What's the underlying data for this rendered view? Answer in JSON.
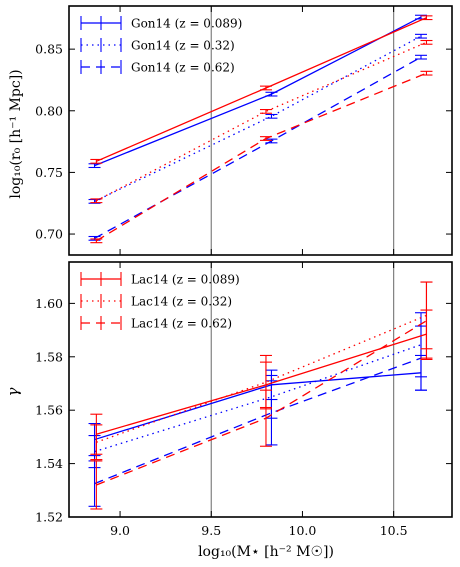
{
  "chart_data": [
    {
      "type": "line",
      "panel": "top",
      "ylabel": "log₁₀(r₀ [h⁻¹ Mpc])",
      "xlim": [
        8.72,
        10.82
      ],
      "ylim": [
        0.683,
        0.885
      ],
      "yticks": [
        0.7,
        0.75,
        0.8,
        0.85
      ],
      "ytick_labels": [
        "0.70",
        "0.75",
        "0.80",
        "0.85"
      ],
      "grid": false,
      "vlines": [
        9.5,
        10.5
      ],
      "legend": {
        "placement": "top-left"
      },
      "series": [
        {
          "name": "Gon14 (z = 0.089)",
          "model": "Gon14",
          "color": "#0000ff",
          "dash": "solid",
          "x": [
            8.86,
            9.83,
            10.65
          ],
          "y": [
            0.7555,
            0.8135,
            0.876
          ],
          "err": [
            0.0015,
            0.0015,
            0.0015
          ]
        },
        {
          "name": "Gon14 (z = 0.32)",
          "model": "Gon14",
          "color": "#0000ff",
          "dash": "dotted",
          "x": [
            8.86,
            9.83,
            10.65
          ],
          "y": [
            0.7265,
            0.7955,
            0.8605
          ],
          "err": [
            0.0015,
            0.0015,
            0.0015
          ]
        },
        {
          "name": "Gon14 (z = 0.62)",
          "model": "Gon14",
          "color": "#0000ff",
          "dash": "dashed",
          "x": [
            8.86,
            9.83,
            10.65
          ],
          "y": [
            0.6965,
            0.7755,
            0.8435
          ],
          "err": [
            0.0015,
            0.0015,
            0.0015
          ]
        },
        {
          "name": "Gon14 (z = 0.089)",
          "model": "Gon14",
          "color": "#ff0000",
          "dash": "solid",
          "x": [
            8.87,
            9.8,
            10.68
          ],
          "y": [
            0.759,
            0.8185,
            0.8755
          ],
          "err": [
            0.0015,
            0.0015,
            0.0015
          ]
        },
        {
          "name": "Gon14 (z = 0.32)",
          "model": "Gon14",
          "color": "#ff0000",
          "dash": "dotted",
          "x": [
            8.87,
            9.8,
            10.68
          ],
          "y": [
            0.727,
            0.7995,
            0.8555
          ],
          "err": [
            0.0015,
            0.0015,
            0.0015
          ]
        },
        {
          "name": "Gon14 (z = 0.62)",
          "model": "Gon14",
          "color": "#ff0000",
          "dash": "dashed",
          "x": [
            8.87,
            9.8,
            10.68
          ],
          "y": [
            0.6945,
            0.7775,
            0.8305
          ],
          "err": [
            0.0015,
            0.0015,
            0.0015
          ]
        }
      ],
      "legend_entries": [
        {
          "label": "Gon14 (z = 0.089)",
          "color": "#0000ff",
          "dash": "solid"
        },
        {
          "label": "Gon14 (z = 0.32)",
          "color": "#0000ff",
          "dash": "dotted"
        },
        {
          "label": "Gon14 (z = 0.62)",
          "color": "#0000ff",
          "dash": "dashed"
        }
      ]
    },
    {
      "type": "line",
      "panel": "bottom",
      "ylabel": "γ",
      "xlabel": "log₁₀(M⋆ [h⁻² M☉])",
      "xlim": [
        8.72,
        10.82
      ],
      "ylim": [
        1.52,
        1.6155
      ],
      "yticks": [
        1.52,
        1.54,
        1.56,
        1.58,
        1.6
      ],
      "ytick_labels": [
        "1.52",
        "1.54",
        "1.56",
        "1.58",
        "1.60"
      ],
      "xticks": [
        9.0,
        9.5,
        10.0,
        10.5
      ],
      "xtick_labels": [
        "9.0",
        "9.5",
        "10.0",
        "10.5"
      ],
      "grid": false,
      "vlines": [
        9.5,
        10.5
      ],
      "legend": {
        "placement": "top-left"
      },
      "series": [
        {
          "name": "Lac14 (z = 0.089)",
          "model": "Lac14",
          "color": "#0000ff",
          "dash": "solid",
          "x": [
            8.86,
            9.83,
            10.65
          ],
          "y": [
            1.549,
            1.5695,
            1.574
          ],
          "err": [
            0.006,
            0.0055,
            0.0065
          ]
        },
        {
          "name": "Lac14 (z = 0.32)",
          "model": "Lac14",
          "color": "#0000ff",
          "dash": "dotted",
          "x": [
            8.86,
            9.83,
            10.65
          ],
          "y": [
            1.5445,
            1.565,
            1.5845
          ],
          "err": [
            0.006,
            0.008,
            0.012
          ]
        },
        {
          "name": "Lac14 (z = 0.62)",
          "model": "Lac14",
          "color": "#0000ff",
          "dash": "dashed",
          "x": [
            8.86,
            9.83,
            10.65
          ],
          "y": [
            1.5325,
            1.559,
            1.5795
          ],
          "err": [
            0.0085,
            0.012,
            0.012
          ]
        },
        {
          "name": "Lac14 (z = 0.089)",
          "model": "Lac14",
          "color": "#ff0000",
          "dash": "solid",
          "x": [
            8.87,
            9.8,
            10.68
          ],
          "y": [
            1.551,
            1.5695,
            1.5885
          ],
          "err": [
            0.0075,
            0.0085,
            0.009
          ]
        },
        {
          "name": "Lac14 (z = 0.32)",
          "model": "Lac14",
          "color": "#ff0000",
          "dash": "dotted",
          "x": [
            8.87,
            9.8,
            10.68
          ],
          "y": [
            1.548,
            1.5705,
            1.5955
          ],
          "err": [
            0.0065,
            0.01,
            0.0125
          ]
        },
        {
          "name": "Lac14 (z = 0.62)",
          "model": "Lac14",
          "color": "#ff0000",
          "dash": "dashed",
          "x": [
            8.87,
            9.8,
            10.68
          ],
          "y": [
            1.532,
            1.557,
            1.5935
          ],
          "err": [
            0.009,
            0.0105,
            0.0145
          ]
        }
      ],
      "legend_entries": [
        {
          "label": "Lac14 (z = 0.089)",
          "color": "#ff0000",
          "dash": "solid"
        },
        {
          "label": "Lac14 (z = 0.32)",
          "color": "#ff0000",
          "dash": "dotted"
        },
        {
          "label": "Lac14 (z = 0.62)",
          "color": "#ff0000",
          "dash": "dashed"
        }
      ]
    }
  ]
}
